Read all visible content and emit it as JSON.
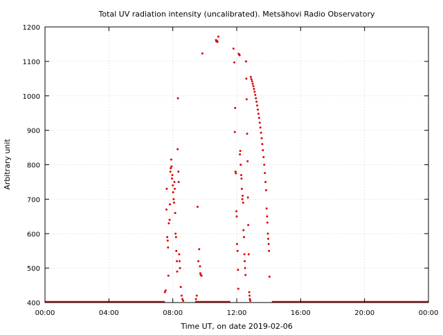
{
  "chart_data": {
    "type": "scatter",
    "title": "Total UV radiation intensity (uncalibrated). Metsähovi Radio Observatory",
    "xlabel": "Time UT, on date 2019-02-06",
    "ylabel": "Arbitrary unit",
    "xlim": [
      0,
      24
    ],
    "ylim": [
      400,
      1200
    ],
    "x_ticks": [
      {
        "value": 0,
        "label": "00:00"
      },
      {
        "value": 4,
        "label": "04:00"
      },
      {
        "value": 8,
        "label": "08:00"
      },
      {
        "value": 12,
        "label": "12:00"
      },
      {
        "value": 16,
        "label": "16:00"
      },
      {
        "value": 20,
        "label": "20:00"
      },
      {
        "value": 24,
        "label": "00:00"
      }
    ],
    "y_ticks": [
      400,
      500,
      600,
      700,
      800,
      900,
      1000,
      1100,
      1200
    ],
    "grid": true,
    "marker_color": "#e00000",
    "baseline_segments": [
      [
        0,
        7.5
      ],
      [
        9.4,
        11.6
      ],
      [
        14.2,
        24
      ]
    ],
    "series": [
      {
        "points": [
          [
            7.5,
            430
          ],
          [
            7.55,
            435
          ],
          [
            7.6,
            670
          ],
          [
            7.62,
            730
          ],
          [
            7.65,
            590
          ],
          [
            7.68,
            580
          ],
          [
            7.7,
            560
          ],
          [
            7.72,
            478
          ],
          [
            7.75,
            630
          ],
          [
            7.8,
            640
          ],
          [
            7.82,
            685
          ],
          [
            7.85,
            780
          ],
          [
            7.87,
            790
          ],
          [
            7.9,
            815
          ],
          [
            7.92,
            795
          ],
          [
            7.95,
            760
          ],
          [
            7.97,
            770
          ],
          [
            8.0,
            740
          ],
          [
            8.02,
            720
          ],
          [
            8.05,
            700
          ],
          [
            8.08,
            690
          ],
          [
            8.1,
            750
          ],
          [
            8.12,
            730
          ],
          [
            8.15,
            660
          ],
          [
            8.17,
            600
          ],
          [
            8.2,
            590
          ],
          [
            8.22,
            550
          ],
          [
            8.25,
            520
          ],
          [
            8.27,
            490
          ],
          [
            8.3,
            845
          ],
          [
            8.32,
            993
          ],
          [
            8.35,
            780
          ],
          [
            8.37,
            750
          ],
          [
            8.4,
            540
          ],
          [
            8.42,
            520
          ],
          [
            8.45,
            500
          ],
          [
            8.5,
            445
          ],
          [
            8.55,
            420
          ],
          [
            8.6,
            410
          ],
          [
            8.65,
            405
          ],
          [
            9.45,
            410
          ],
          [
            9.5,
            420
          ],
          [
            9.55,
            678
          ],
          [
            9.6,
            520
          ],
          [
            9.65,
            555
          ],
          [
            9.7,
            505
          ],
          [
            9.72,
            485
          ],
          [
            9.75,
            480
          ],
          [
            9.8,
            478
          ],
          [
            9.85,
            1123
          ],
          [
            10.7,
            1162
          ],
          [
            10.73,
            1158
          ],
          [
            10.76,
            1160
          ],
          [
            10.8,
            1157
          ],
          [
            10.85,
            1172
          ],
          [
            11.8,
            1137
          ],
          [
            11.85,
            1097
          ],
          [
            11.88,
            895
          ],
          [
            11.9,
            965
          ],
          [
            11.92,
            780
          ],
          [
            11.95,
            775
          ],
          [
            11.98,
            665
          ],
          [
            12.0,
            650
          ],
          [
            12.02,
            570
          ],
          [
            12.05,
            550
          ],
          [
            12.08,
            495
          ],
          [
            12.1,
            440
          ],
          [
            12.12,
            1122
          ],
          [
            12.15,
            1120
          ],
          [
            12.18,
            1118
          ],
          [
            12.2,
            830
          ],
          [
            12.22,
            840
          ],
          [
            12.25,
            800
          ],
          [
            12.28,
            770
          ],
          [
            12.3,
            760
          ],
          [
            12.32,
            730
          ],
          [
            12.35,
            700
          ],
          [
            12.37,
            710
          ],
          [
            12.4,
            690
          ],
          [
            12.42,
            610
          ],
          [
            12.45,
            590
          ],
          [
            12.48,
            540
          ],
          [
            12.5,
            520
          ],
          [
            12.52,
            500
          ],
          [
            12.55,
            480
          ],
          [
            12.58,
            1100
          ],
          [
            12.6,
            1050
          ],
          [
            12.62,
            990
          ],
          [
            12.65,
            890
          ],
          [
            12.68,
            810
          ],
          [
            12.7,
            705
          ],
          [
            12.72,
            625
          ],
          [
            12.75,
            540
          ],
          [
            12.78,
            430
          ],
          [
            12.8,
            420
          ],
          [
            12.82,
            410
          ],
          [
            12.85,
            405
          ],
          [
            12.88,
            1055
          ],
          [
            12.92,
            1048
          ],
          [
            12.96,
            1042
          ],
          [
            13.0,
            1035
          ],
          [
            13.04,
            1028
          ],
          [
            13.08,
            1020
          ],
          [
            13.12,
            1012
          ],
          [
            13.16,
            1003
          ],
          [
            13.2,
            993
          ],
          [
            13.24,
            983
          ],
          [
            13.28,
            972
          ],
          [
            13.32,
            960
          ],
          [
            13.36,
            948
          ],
          [
            13.4,
            936
          ],
          [
            13.44,
            922
          ],
          [
            13.48,
            908
          ],
          [
            13.52,
            893
          ],
          [
            13.56,
            877
          ],
          [
            13.6,
            860
          ],
          [
            13.64,
            842
          ],
          [
            13.68,
            822
          ],
          [
            13.72,
            800
          ],
          [
            13.76,
            776
          ],
          [
            13.8,
            750
          ],
          [
            13.84,
            726
          ],
          [
            13.87,
            673
          ],
          [
            13.9,
            650
          ],
          [
            13.92,
            632
          ],
          [
            13.95,
            600
          ],
          [
            13.97,
            585
          ],
          [
            14.0,
            570
          ],
          [
            14.02,
            550
          ],
          [
            14.05,
            475
          ]
        ]
      }
    ]
  }
}
